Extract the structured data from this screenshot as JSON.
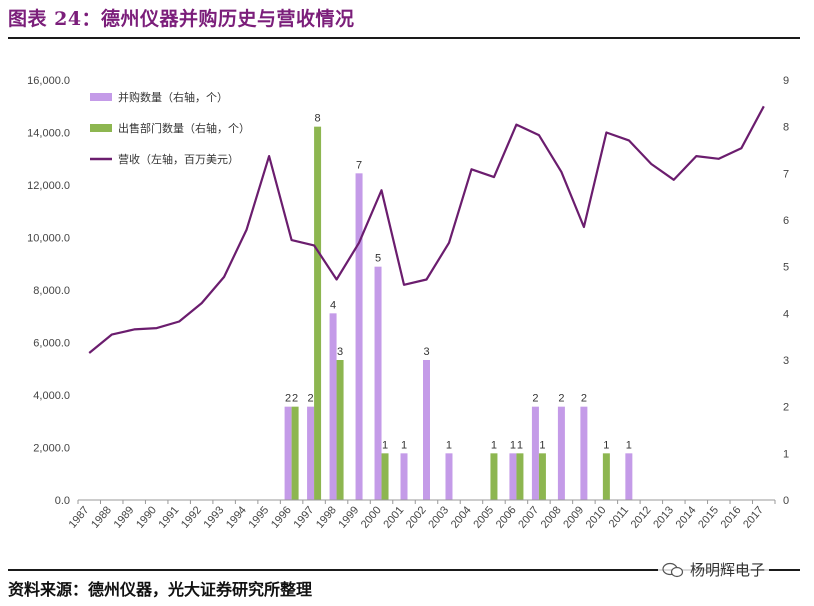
{
  "title": "图表 24：德州仪器并购历史与营收情况",
  "source": "资料来源：德州仪器，光大证券研究所整理",
  "watermark": "杨明辉电子",
  "colors": {
    "mergers": "#c49be8",
    "divestitures": "#8db650",
    "revenue": "#6b1d6e",
    "title": "#7b1e7a"
  },
  "chart_data": {
    "type": "bar+line",
    "categories": [
      "1987",
      "1988",
      "1989",
      "1990",
      "1991",
      "1992",
      "1993",
      "1994",
      "1995",
      "1996",
      "1997",
      "1998",
      "1999",
      "2000",
      "2001",
      "2002",
      "2003",
      "2004",
      "2005",
      "2006",
      "2007",
      "2008",
      "2009",
      "2010",
      "2011",
      "2012",
      "2013",
      "2014",
      "2015",
      "2016",
      "2017"
    ],
    "left_axis": {
      "min": 0,
      "max": 16000,
      "step": 2000,
      "tick_labels": [
        "0.0",
        "2,000.0",
        "4,000.0",
        "6,000.0",
        "8,000.0",
        "10,000.0",
        "12,000.0",
        "14,000.0",
        "16,000.0"
      ]
    },
    "right_axis": {
      "min": 0,
      "max": 9,
      "step": 1,
      "tick_labels": [
        "0",
        "1",
        "2",
        "3",
        "4",
        "5",
        "6",
        "7",
        "8",
        "9"
      ]
    },
    "legend": [
      {
        "label": "并购数量（右轴，个）",
        "kind": "bar"
      },
      {
        "label": "出售部门数量（右轴，个）",
        "kind": "bar"
      },
      {
        "label": "营收（左轴，百万美元）",
        "kind": "line"
      }
    ],
    "legend_position": "top-left",
    "series": [
      {
        "name": "并购数量（右轴，个）",
        "axis": "right",
        "type": "bar",
        "values": [
          null,
          null,
          null,
          null,
          null,
          null,
          null,
          null,
          null,
          2,
          2,
          4,
          7,
          5,
          1,
          3,
          1,
          null,
          null,
          1,
          2,
          2,
          2,
          null,
          1,
          null,
          null,
          null,
          null,
          null,
          null
        ]
      },
      {
        "name": "出售部门数量（右轴，个）",
        "axis": "right",
        "type": "bar",
        "values": [
          null,
          null,
          null,
          null,
          null,
          null,
          null,
          null,
          null,
          2,
          8,
          3,
          null,
          1,
          null,
          null,
          null,
          null,
          1,
          1,
          1,
          null,
          null,
          1,
          null,
          null,
          null,
          null,
          null,
          null,
          null
        ]
      },
      {
        "name": "营收（左轴，百万美元）",
        "axis": "left",
        "type": "line",
        "values": [
          5600,
          6300,
          6500,
          6550,
          6800,
          7500,
          8500,
          10300,
          13100,
          9900,
          9700,
          8400,
          9800,
          11800,
          8200,
          8400,
          9800,
          12600,
          12300,
          14300,
          13900,
          12500,
          10400,
          14000,
          13700,
          12800,
          12200,
          13100,
          13000,
          13400,
          15000
        ]
      }
    ]
  }
}
